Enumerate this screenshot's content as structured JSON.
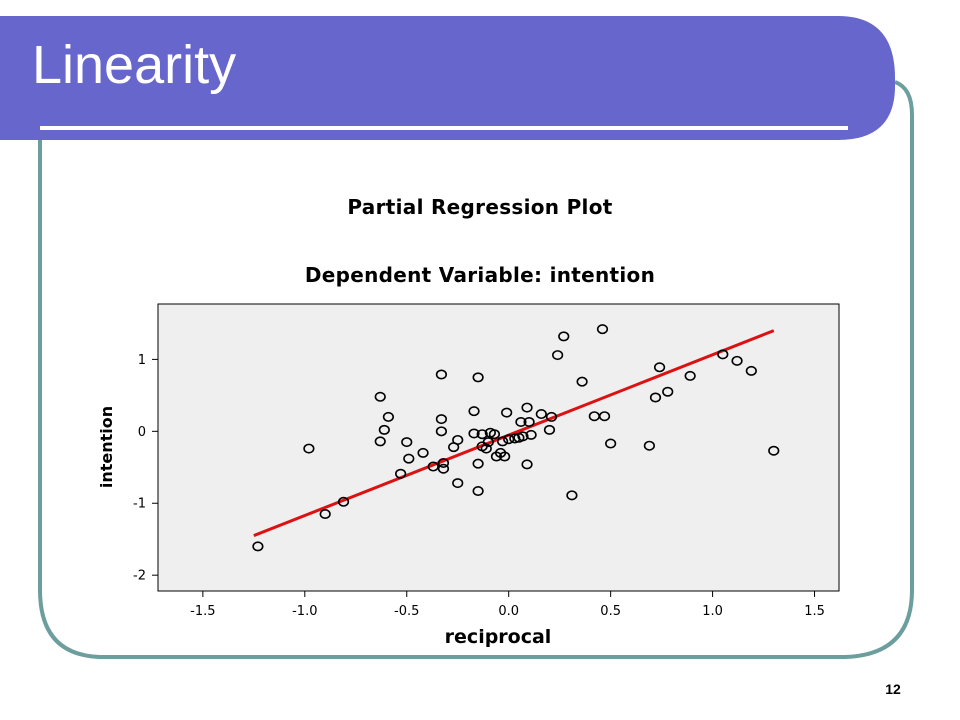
{
  "slide": {
    "title": "Linearity",
    "page_number": "12",
    "colors": {
      "header": "#6666cc",
      "frame": "#6d9e9e",
      "plot_bg": "#efefef",
      "fit_line": "#dd1111"
    }
  },
  "chart_data": {
    "type": "scatter",
    "title": "Partial Regression Plot",
    "subtitle": "Dependent Variable: intention",
    "xlabel": "reciprocal",
    "ylabel": "intention",
    "xlim": [
      -1.72,
      1.62
    ],
    "ylim": [
      -2.22,
      1.77
    ],
    "x_ticks": [
      -1.5,
      -1.0,
      -0.5,
      0.0,
      0.5,
      1.0,
      1.5
    ],
    "x_tick_labels": [
      "-1.5",
      "-1.0",
      "-0.5",
      "0.0",
      "0.5",
      "1.0",
      "1.5"
    ],
    "y_ticks": [
      1,
      0,
      -1,
      -2
    ],
    "y_tick_labels": [
      "1",
      "0",
      "-1",
      "-2"
    ],
    "grid": false,
    "marker": "open-circle",
    "fit_line": {
      "x": [
        -1.25,
        1.3
      ],
      "y": [
        -1.45,
        1.4
      ]
    },
    "points": [
      [
        -1.23,
        -1.6
      ],
      [
        -0.98,
        -0.24
      ],
      [
        -0.9,
        -1.15
      ],
      [
        -0.81,
        -0.98
      ],
      [
        -0.63,
        0.48
      ],
      [
        -0.63,
        -0.14
      ],
      [
        -0.61,
        0.02
      ],
      [
        -0.59,
        0.2
      ],
      [
        -0.53,
        -0.59
      ],
      [
        -0.5,
        -0.15
      ],
      [
        -0.49,
        -0.38
      ],
      [
        -0.42,
        -0.3
      ],
      [
        -0.37,
        -0.49
      ],
      [
        -0.33,
        0.79
      ],
      [
        -0.33,
        0.17
      ],
      [
        -0.33,
        0.0
      ],
      [
        -0.32,
        -0.44
      ],
      [
        -0.32,
        -0.52
      ],
      [
        -0.27,
        -0.22
      ],
      [
        -0.25,
        -0.12
      ],
      [
        -0.25,
        -0.72
      ],
      [
        -0.17,
        0.28
      ],
      [
        -0.17,
        -0.03
      ],
      [
        -0.15,
        0.75
      ],
      [
        -0.15,
        -0.45
      ],
      [
        -0.15,
        -0.83
      ],
      [
        -0.13,
        -0.21
      ],
      [
        -0.13,
        -0.04
      ],
      [
        -0.11,
        -0.24
      ],
      [
        -0.1,
        -0.15
      ],
      [
        -0.09,
        -0.02
      ],
      [
        -0.07,
        -0.04
      ],
      [
        -0.06,
        -0.35
      ],
      [
        -0.04,
        -0.3
      ],
      [
        -0.03,
        -0.14
      ],
      [
        -0.02,
        -0.35
      ],
      [
        -0.01,
        0.26
      ],
      [
        0.0,
        -0.11
      ],
      [
        0.03,
        -0.1
      ],
      [
        0.05,
        -0.09
      ],
      [
        0.06,
        0.13
      ],
      [
        0.07,
        -0.07
      ],
      [
        0.09,
        0.33
      ],
      [
        0.09,
        -0.46
      ],
      [
        0.1,
        0.13
      ],
      [
        0.11,
        -0.05
      ],
      [
        0.16,
        0.24
      ],
      [
        0.2,
        0.02
      ],
      [
        0.21,
        0.2
      ],
      [
        0.24,
        1.06
      ],
      [
        0.27,
        1.32
      ],
      [
        0.31,
        -0.89
      ],
      [
        0.36,
        0.69
      ],
      [
        0.42,
        0.21
      ],
      [
        0.46,
        1.42
      ],
      [
        0.47,
        0.21
      ],
      [
        0.5,
        -0.17
      ],
      [
        0.69,
        -0.2
      ],
      [
        0.72,
        0.47
      ],
      [
        0.74,
        0.89
      ],
      [
        0.78,
        0.55
      ],
      [
        0.89,
        0.77
      ],
      [
        1.05,
        1.07
      ],
      [
        1.12,
        0.98
      ],
      [
        1.19,
        0.84
      ],
      [
        1.3,
        -0.27
      ]
    ]
  }
}
